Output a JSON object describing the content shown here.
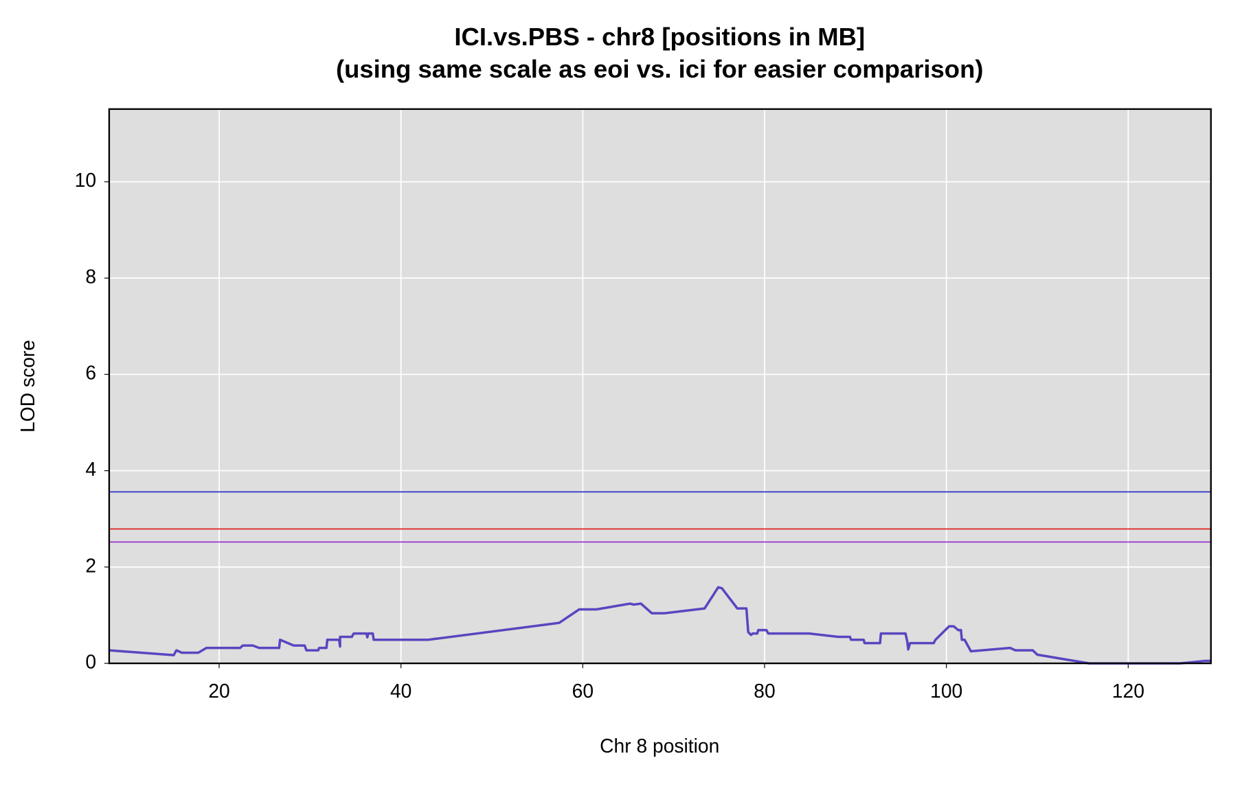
{
  "chart_data": {
    "type": "line",
    "title": "ICI.vs.PBS - chr8 [positions in MB]",
    "subtitle": "(using same scale as eoi vs. ici for easier comparison)",
    "x_label": "Chr 8 position",
    "y_label": "LOD score",
    "xlim": [
      7.9,
      129.1
    ],
    "ylim": [
      0,
      11.51
    ],
    "xticks": [
      20,
      40,
      60,
      80,
      100,
      120
    ],
    "yticks": [
      0,
      2,
      4,
      6,
      8,
      10
    ],
    "grid": true,
    "background": "#dedede",
    "x": [
      7.9,
      15.0,
      15.3,
      15.9,
      17.7,
      18.6,
      22.3,
      22.6,
      23.7,
      24.4,
      26.6,
      26.7,
      28.2,
      29.4,
      29.6,
      30.9,
      31.0,
      31.8,
      31.9,
      33.2,
      33.3,
      33.3,
      34.6,
      34.8,
      36.2,
      36.3,
      36.4,
      36.9,
      37.0,
      43.0,
      57.4,
      59.6,
      61.5,
      65.2,
      65.6,
      66.4,
      67.6,
      69.0,
      73.4,
      74.9,
      75.3,
      77.0,
      78.0,
      78.2,
      78.5,
      78.7,
      79.2,
      79.3,
      80.2,
      80.4,
      84.9,
      88.1,
      89.4,
      89.5,
      90.9,
      91.0,
      92.7,
      92.8,
      95.5,
      95.7,
      95.8,
      96.0,
      98.6,
      98.8,
      100.3,
      100.8,
      101.3,
      101.6,
      101.7,
      102.0,
      102.7,
      107.0,
      107.6,
      109.5,
      110.0,
      115.7,
      125.7,
      128.4,
      129.1
    ],
    "series": [
      {
        "color": "#5a45c0",
        "values": [
          0.27,
          0.17,
          0.27,
          0.22,
          0.22,
          0.32,
          0.32,
          0.37,
          0.37,
          0.32,
          0.32,
          0.49,
          0.37,
          0.37,
          0.27,
          0.27,
          0.32,
          0.32,
          0.49,
          0.49,
          0.35,
          0.55,
          0.55,
          0.62,
          0.62,
          0.54,
          0.62,
          0.62,
          0.49,
          0.49,
          0.84,
          1.12,
          1.12,
          1.24,
          1.22,
          1.24,
          1.04,
          1.04,
          1.14,
          1.58,
          1.56,
          1.14,
          1.14,
          0.65,
          0.59,
          0.62,
          0.62,
          0.69,
          0.69,
          0.62,
          0.62,
          0.55,
          0.55,
          0.49,
          0.49,
          0.42,
          0.42,
          0.62,
          0.62,
          0.45,
          0.29,
          0.42,
          0.42,
          0.49,
          0.77,
          0.77,
          0.69,
          0.69,
          0.49,
          0.49,
          0.25,
          0.32,
          0.27,
          0.27,
          0.18,
          0.0,
          0.0,
          0.05,
          0.05
        ]
      }
    ],
    "hlines": [
      {
        "value": 3.56,
        "color": "#3030c8"
      },
      {
        "value": 2.79,
        "color": "#e02020"
      },
      {
        "value": 2.52,
        "color": "#9933cc"
      }
    ]
  }
}
